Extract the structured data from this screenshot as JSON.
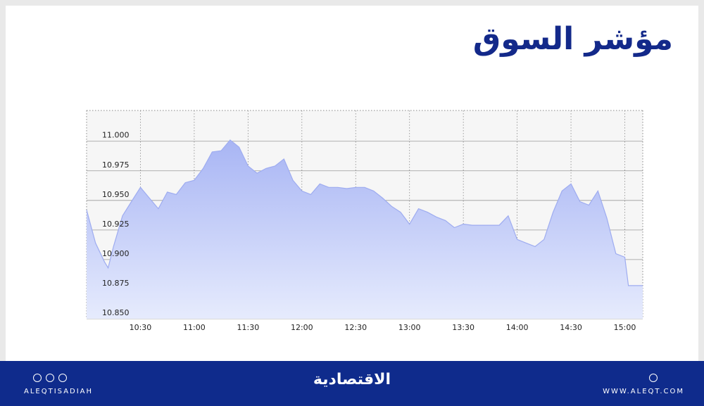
{
  "chart_data": {
    "type": "area",
    "title": "مؤشر السوق",
    "x": [
      "10:00",
      "10:05",
      "10:10",
      "10:12",
      "10:15",
      "10:20",
      "10:25",
      "10:30",
      "10:35",
      "10:40",
      "10:45",
      "10:50",
      "10:55",
      "11:00",
      "11:05",
      "11:10",
      "11:15",
      "11:20",
      "11:25",
      "11:30",
      "11:35",
      "11:40",
      "11:45",
      "11:50",
      "11:55",
      "12:00",
      "12:05",
      "12:10",
      "12:15",
      "12:20",
      "12:25",
      "12:30",
      "12:35",
      "12:40",
      "12:45",
      "12:50",
      "12:55",
      "13:00",
      "13:05",
      "13:10",
      "13:15",
      "13:20",
      "13:25",
      "13:30",
      "13:35",
      "13:40",
      "13:45",
      "13:50",
      "13:55",
      "14:00",
      "14:05",
      "14:10",
      "14:15",
      "14:20",
      "14:25",
      "14:30",
      "14:35",
      "14:40",
      "14:45",
      "14:50",
      "14:55",
      "15:00",
      "15:02",
      "15:10"
    ],
    "values": [
      10942,
      10914,
      10898,
      10893,
      10911,
      10937,
      10949,
      10961,
      10952,
      10943,
      10957,
      10955,
      10965,
      10967,
      10977,
      10991,
      10992,
      11001,
      10995,
      10979,
      10973,
      10977,
      10979,
      10985,
      10967,
      10958,
      10955,
      10964,
      10961,
      10961,
      10960,
      10961,
      10961,
      10958,
      10952,
      10945,
      10940,
      10930,
      10943,
      10940,
      10936,
      10933,
      10927,
      10930,
      10929,
      10929,
      10929,
      10929,
      10937,
      10917,
      10914,
      10911,
      10917,
      10940,
      10958,
      10964,
      10949,
      10946,
      10958,
      10935,
      10905,
      10902,
      10878,
      10878
    ],
    "color": "#9eacf0",
    "xlim": [
      "10:00",
      "15:10"
    ],
    "xticks": [
      "10:30",
      "11:00",
      "11:30",
      "12:00",
      "12:30",
      "13:00",
      "13:30",
      "14:00",
      "14:30",
      "15:00"
    ],
    "ylim": [
      10850,
      11026
    ],
    "yticks": [
      {
        "value": 11000,
        "label": "11.000"
      },
      {
        "value": 10975,
        "label": "10.975"
      },
      {
        "value": 10950,
        "label": "10.950"
      },
      {
        "value": 10925,
        "label": "10.925"
      },
      {
        "value": 10900,
        "label": "10.900"
      },
      {
        "value": 10875,
        "label": "10.875"
      },
      {
        "value": 10850,
        "label": "10.850"
      }
    ],
    "grid": true
  },
  "footer": {
    "social_handle": "ALEQTISADIAH",
    "logo": "الاقتصادية",
    "website": "WWW.ALEQT.COM"
  }
}
